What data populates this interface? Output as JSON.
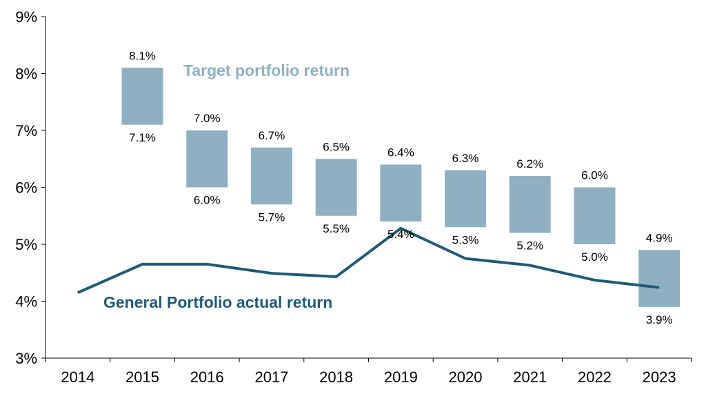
{
  "chart_data": {
    "type": "bar",
    "categories": [
      "2014",
      "2015",
      "2016",
      "2017",
      "2018",
      "2019",
      "2020",
      "2021",
      "2022",
      "2023"
    ],
    "ylim": [
      3,
      9
    ],
    "y_ticks": [
      3,
      4,
      5,
      6,
      7,
      8,
      9
    ],
    "y_tick_labels": [
      "3%",
      "4%",
      "5%",
      "6%",
      "7%",
      "8%",
      "9%"
    ],
    "target_range": {
      "name": "Target portfolio return",
      "color": "#8FB0C2",
      "high": [
        null,
        8.1,
        7.0,
        6.7,
        6.5,
        6.4,
        6.3,
        6.2,
        6.0,
        4.9
      ],
      "low": [
        null,
        7.1,
        6.0,
        5.7,
        5.5,
        5.4,
        5.3,
        5.2,
        5.0,
        3.9
      ],
      "high_labels": [
        "",
        "8.1%",
        "7.0%",
        "6.7%",
        "6.5%",
        "6.4%",
        "6.3%",
        "6.2%",
        "6.0%",
        "4.9%"
      ],
      "low_labels": [
        "",
        "7.1%",
        "6.0%",
        "5.7%",
        "5.5%",
        "5.4%",
        "5.3%",
        "5.2%",
        "5.0%",
        "3.9%"
      ]
    },
    "actual_series": {
      "name": "General Portfolio actual return",
      "color": "#1F5A77",
      "values": [
        4.15,
        4.65,
        4.65,
        4.49,
        4.43,
        5.28,
        4.75,
        4.63,
        4.37,
        4.24
      ]
    },
    "grid": false,
    "legend": "inline"
  }
}
